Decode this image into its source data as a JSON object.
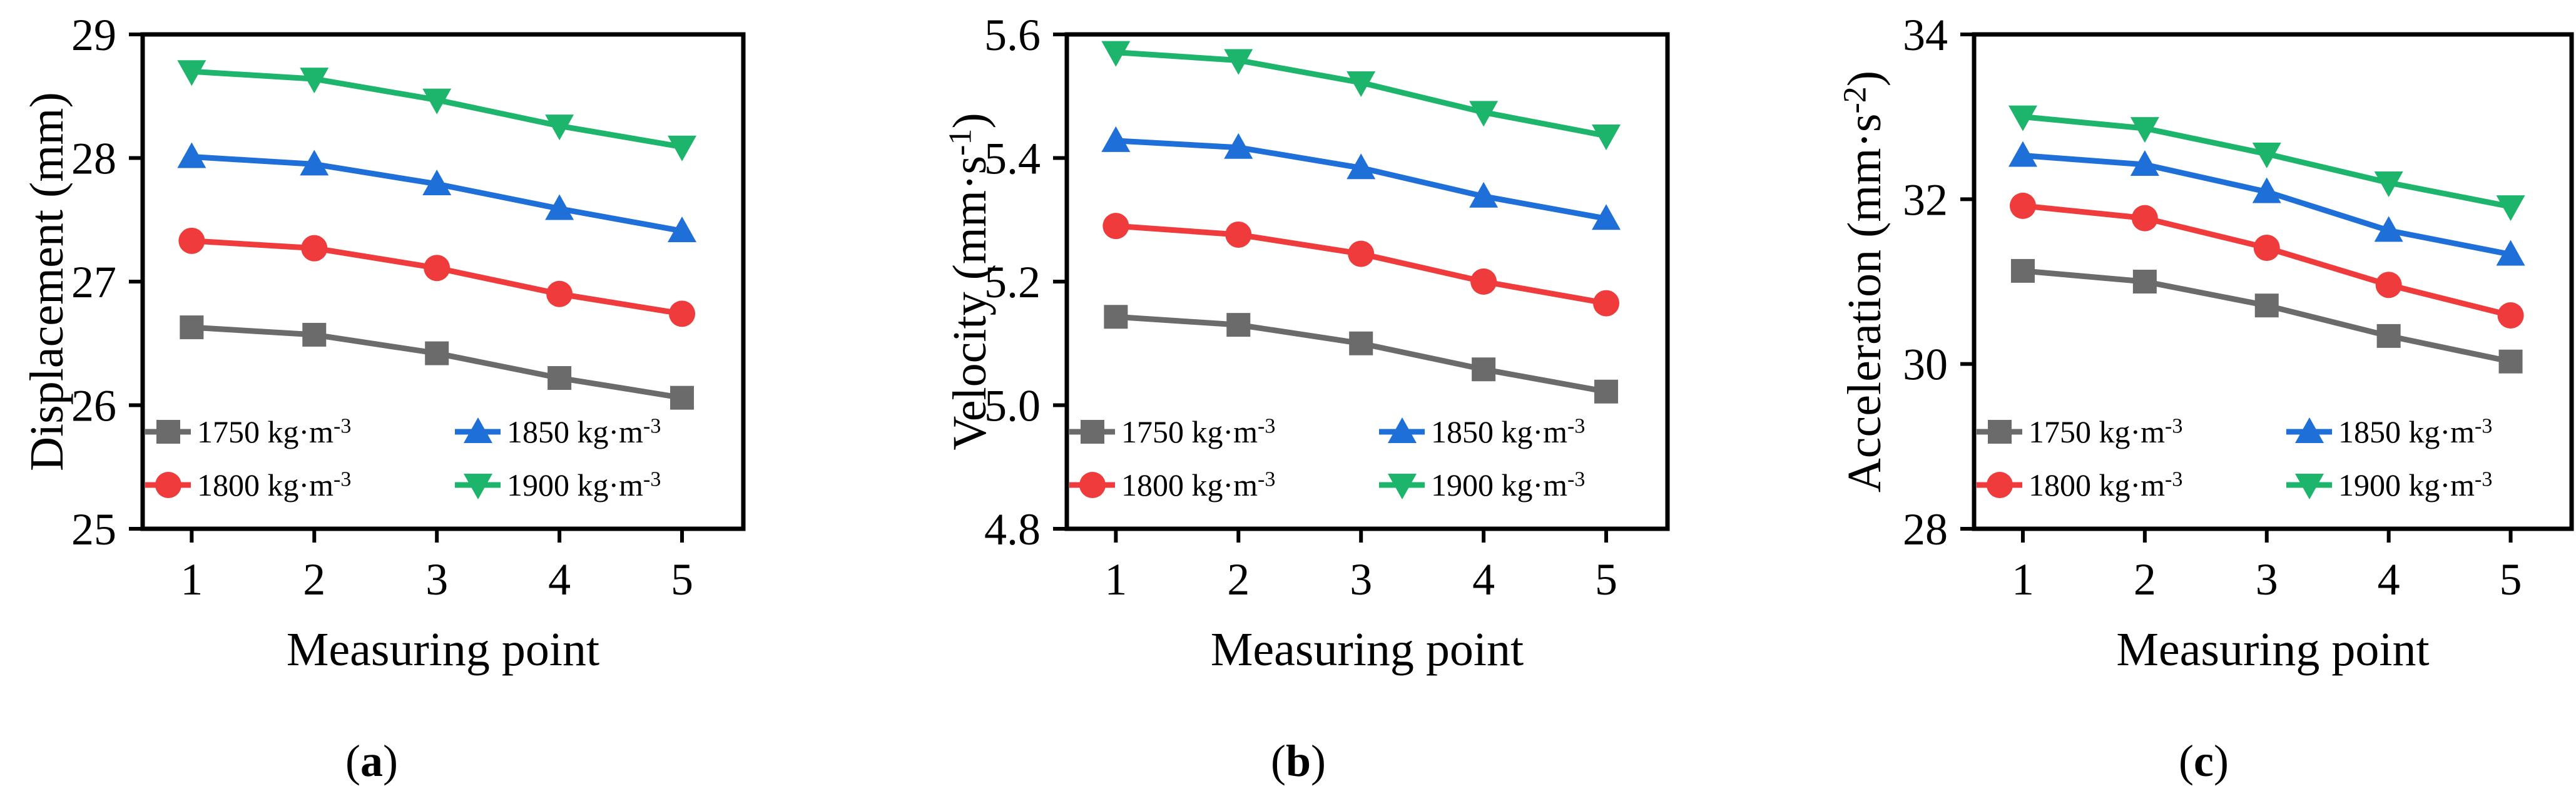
{
  "figure": {
    "legend_entries": [
      {
        "label": "1750 kg·m",
        "exponent": "-3",
        "color": "#6b6b6b",
        "marker": "square"
      },
      {
        "label": "1850 kg·m",
        "exponent": "-3",
        "color": "#1f6fd9",
        "marker": "triangle-up"
      },
      {
        "label": "1800 kg·m",
        "exponent": "-3",
        "color": "#ef3b3b",
        "marker": "circle"
      },
      {
        "label": "1900 kg·m",
        "exponent": "-3",
        "color": "#1db46c",
        "marker": "triangle-down"
      }
    ]
  },
  "chart_data": [
    {
      "type": "line",
      "caption": "a",
      "xlabel": "Measuring point",
      "ylabel": "Displacement (mm)",
      "ylabel_exponent": "",
      "categories": [
        "1",
        "2",
        "3",
        "4",
        "5"
      ],
      "x": [
        1,
        2,
        3,
        4,
        5
      ],
      "xlim": [
        0.6,
        5.5
      ],
      "ylim": [
        25,
        29
      ],
      "yticks": [
        "25",
        "26",
        "27",
        "28",
        "29"
      ],
      "ytick_values": [
        25,
        26,
        27,
        28,
        29
      ],
      "series": [
        {
          "name": "1750 kg·m-3",
          "color": "#6b6b6b",
          "marker": "square",
          "values": [
            26.63,
            26.57,
            26.42,
            26.22,
            26.06
          ]
        },
        {
          "name": "1800 kg·m-3",
          "color": "#ef3b3b",
          "marker": "circle",
          "values": [
            27.33,
            27.27,
            27.11,
            26.9,
            26.74
          ]
        },
        {
          "name": "1850 kg·m-3",
          "color": "#1f6fd9",
          "marker": "triangle-up",
          "values": [
            28.01,
            27.95,
            27.79,
            27.59,
            27.41
          ]
        },
        {
          "name": "1900 kg·m-3",
          "color": "#1db46c",
          "marker": "triangle-down",
          "values": [
            28.7,
            28.64,
            28.47,
            28.26,
            28.09
          ]
        }
      ]
    },
    {
      "type": "line",
      "caption": "b",
      "xlabel": "Measuring point",
      "ylabel": "Velocity (mm·s",
      "ylabel_exponent": "-1",
      "categories": [
        "1",
        "2",
        "3",
        "4",
        "5"
      ],
      "x": [
        1,
        2,
        3,
        4,
        5
      ],
      "xlim": [
        0.6,
        5.5
      ],
      "ylim": [
        4.8,
        5.6
      ],
      "yticks": [
        "4.8",
        "5.0",
        "5.2",
        "5.4",
        "5.6"
      ],
      "ytick_values": [
        4.8,
        5.0,
        5.2,
        5.4,
        5.6
      ],
      "series": [
        {
          "name": "1750 kg·m-3",
          "color": "#6b6b6b",
          "marker": "square",
          "values": [
            5.143,
            5.13,
            5.1,
            5.058,
            5.022
          ]
        },
        {
          "name": "1800 kg·m-3",
          "color": "#ef3b3b",
          "marker": "circle",
          "values": [
            5.29,
            5.276,
            5.245,
            5.2,
            5.165
          ]
        },
        {
          "name": "1850 kg·m-3",
          "color": "#1f6fd9",
          "marker": "triangle-up",
          "values": [
            5.428,
            5.417,
            5.384,
            5.338,
            5.302
          ]
        },
        {
          "name": "1900 kg·m-3",
          "color": "#1db46c",
          "marker": "triangle-down",
          "values": [
            5.571,
            5.558,
            5.522,
            5.474,
            5.436
          ]
        }
      ]
    },
    {
      "type": "line",
      "caption": "c",
      "xlabel": "Measuring point",
      "ylabel": "Acceleration (mm·s",
      "ylabel_exponent": "-2",
      "categories": [
        "1",
        "2",
        "3",
        "4",
        "5"
      ],
      "x": [
        1,
        2,
        3,
        4,
        5
      ],
      "xlim": [
        0.6,
        5.5
      ],
      "ylim": [
        28,
        34
      ],
      "yticks": [
        "28",
        "30",
        "32",
        "34"
      ],
      "ytick_values": [
        28,
        30,
        32,
        34
      ],
      "series": [
        {
          "name": "1750 kg·m-3",
          "color": "#6b6b6b",
          "marker": "square",
          "values": [
            31.13,
            31.0,
            30.71,
            30.34,
            30.03
          ]
        },
        {
          "name": "1800 kg·m-3",
          "color": "#ef3b3b",
          "marker": "circle",
          "values": [
            31.92,
            31.77,
            31.41,
            30.96,
            30.59
          ]
        },
        {
          "name": "1850 kg·m-3",
          "color": "#1f6fd9",
          "marker": "triangle-up",
          "values": [
            32.53,
            32.42,
            32.09,
            31.62,
            31.33
          ]
        },
        {
          "name": "1900 kg·m-3",
          "color": "#1db46c",
          "marker": "triangle-down",
          "values": [
            33.0,
            32.86,
            32.55,
            32.2,
            31.91
          ]
        }
      ]
    }
  ]
}
